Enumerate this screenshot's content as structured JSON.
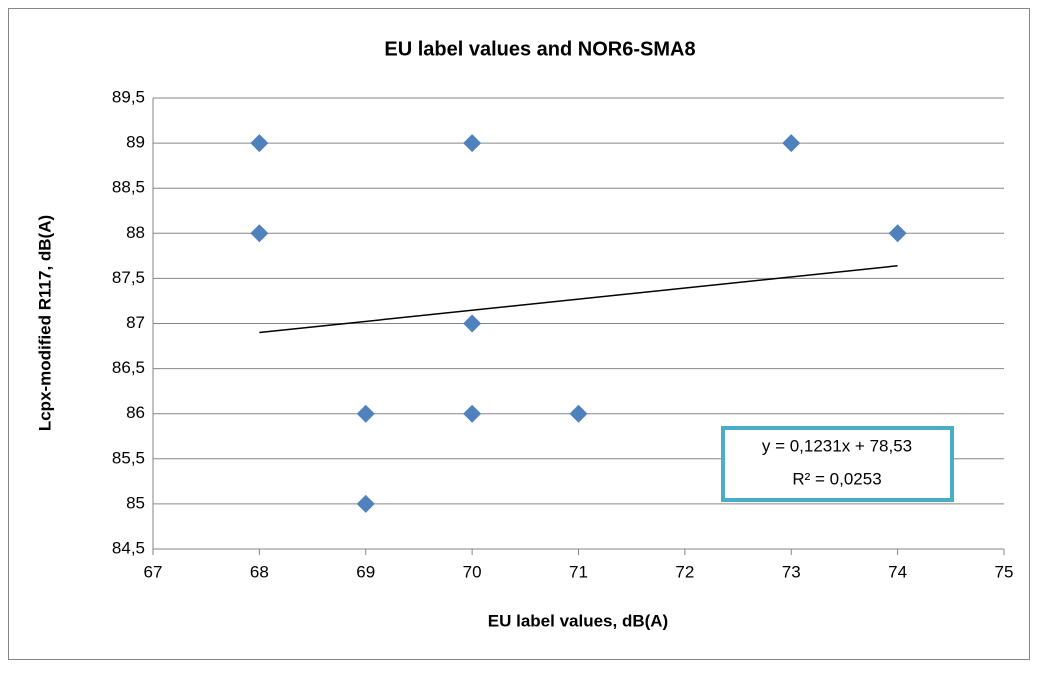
{
  "chart_data": {
    "type": "scatter",
    "title": "EU label values and NOR6-SMA8",
    "xlabel": "EU label values, dB(A)",
    "ylabel": "Lcpx-modified R117, dB(A)",
    "series": [
      {
        "color": "#4f81bd",
        "x": [
          68,
          68,
          70,
          73,
          74,
          70,
          69,
          70,
          71,
          69
        ],
        "values": [
          89,
          88,
          89,
          89,
          88,
          87,
          86,
          86,
          86,
          85
        ]
      }
    ],
    "trendline": {
      "color": "#000000",
      "x": [
        68,
        74
      ],
      "values": [
        86.9,
        87.64
      ]
    },
    "annotation": [
      "y = 0,1231x + 78,53",
      "R² = 0,0253"
    ],
    "annotation_border": "#4bacc6",
    "xlim": [
      67,
      75
    ],
    "xticks": [
      67,
      68,
      69,
      70,
      71,
      72,
      73,
      74,
      75
    ],
    "ylim": [
      84.5,
      89.5
    ],
    "yticks": [
      {
        "value": 84.5,
        "label": "84,5"
      },
      85,
      {
        "value": 85.5,
        "label": "85,5"
      },
      86,
      {
        "value": 86.5,
        "label": "86,5"
      },
      87,
      {
        "value": 87.5,
        "label": "87,5"
      },
      88,
      {
        "value": 88.5,
        "label": "88,5"
      },
      89,
      {
        "value": 89.5,
        "label": "89,5"
      }
    ],
    "grid": true
  }
}
